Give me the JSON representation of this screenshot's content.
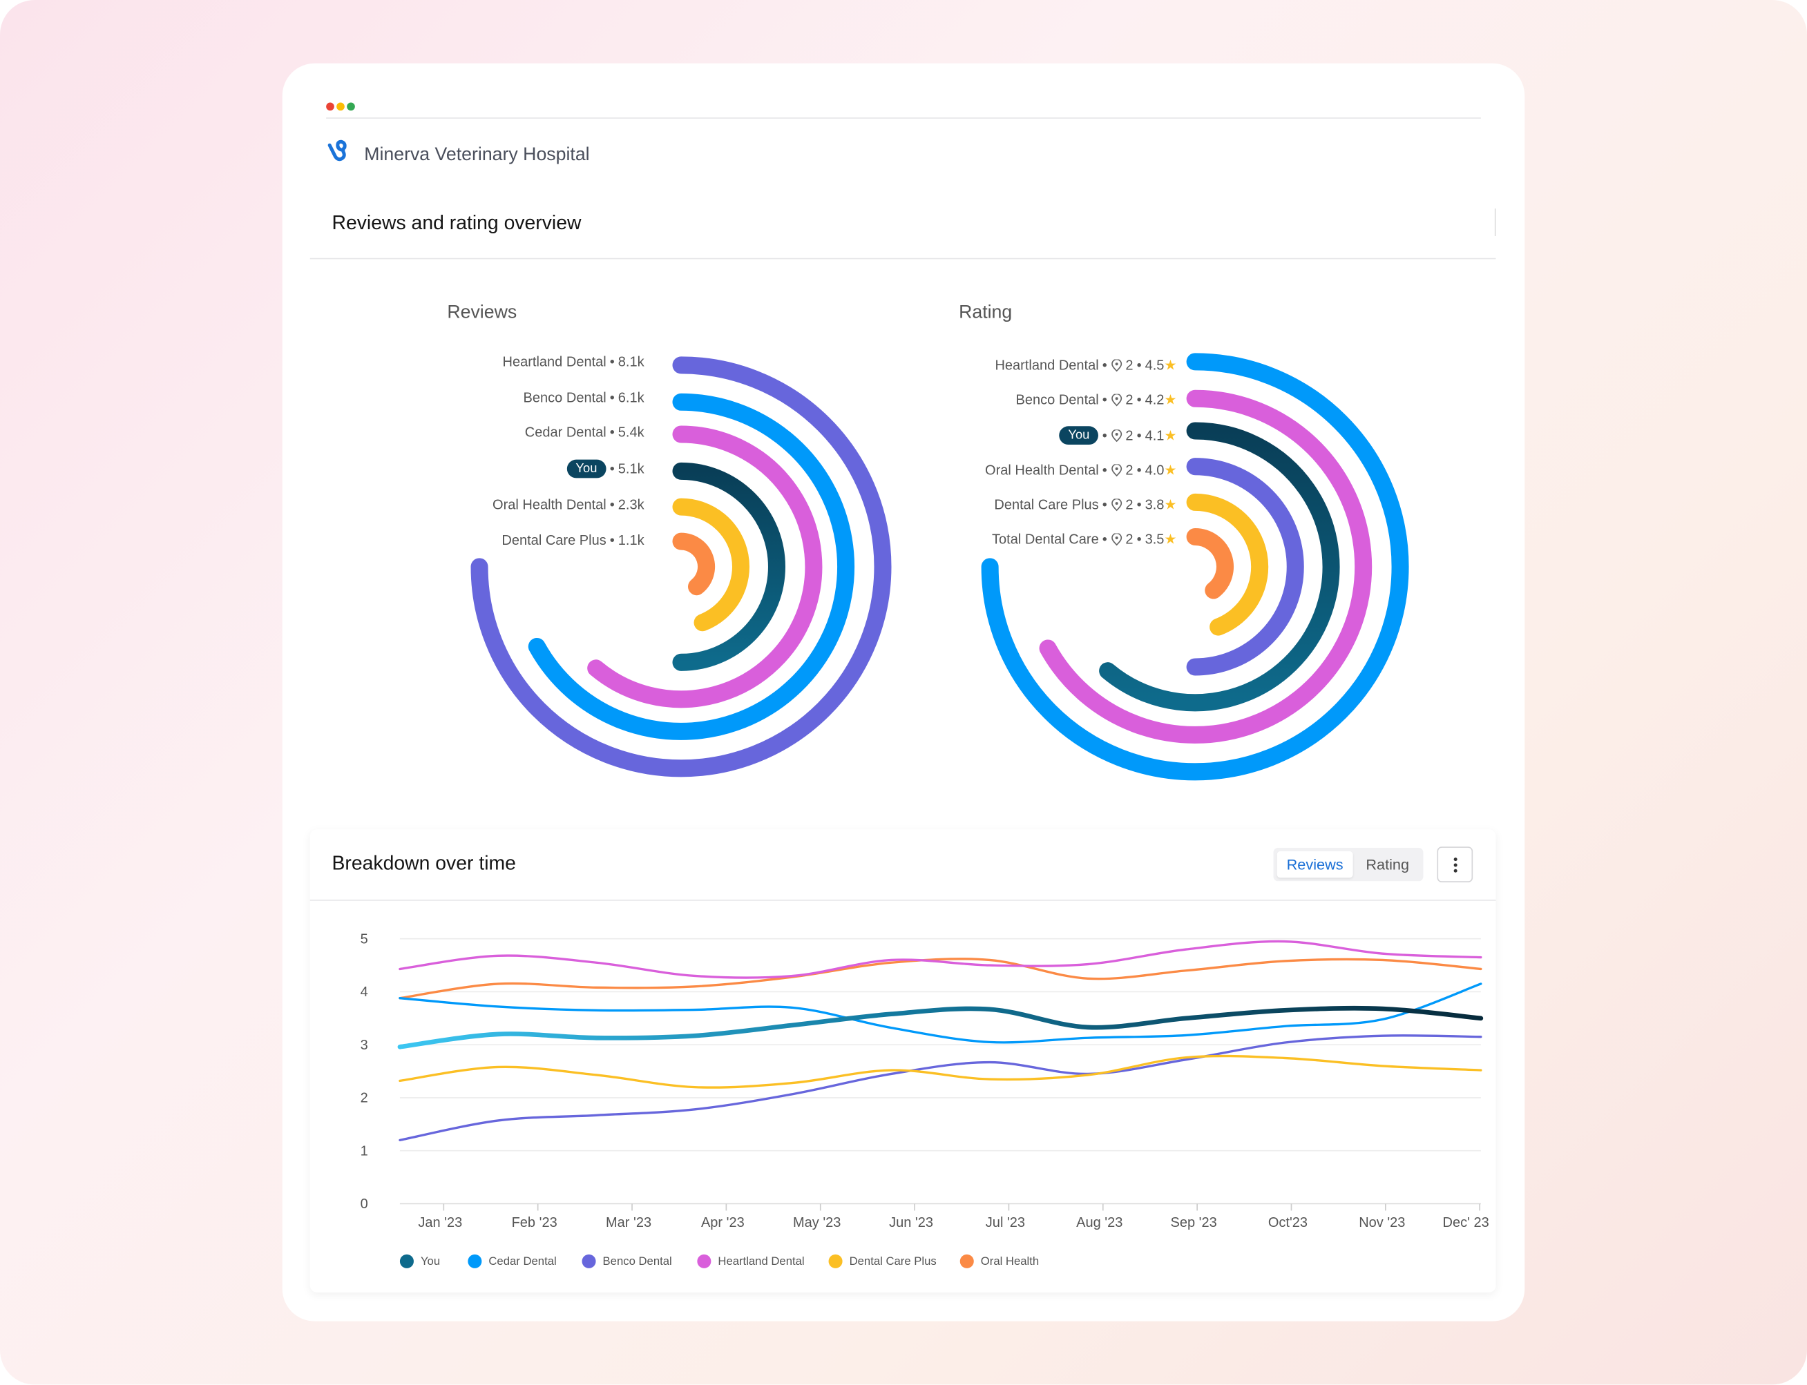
{
  "window": {
    "dots": [
      "#ea4335",
      "#fbbc05",
      "#34a853"
    ]
  },
  "app": {
    "title": "Minerva Veterinary Hospital",
    "logo_icon": "brand-logo-icon",
    "brand_color": "#1a73d9"
  },
  "overview": {
    "title": "Reviews and rating overview"
  },
  "reviews": {
    "title": "Reviews",
    "items": [
      {
        "name": "Heartland Dental",
        "value": "8.1k",
        "number": 8.1,
        "color": "#6766dc",
        "is_you": false
      },
      {
        "name": "Benco Dental",
        "value": "6.1k",
        "number": 6.1,
        "color": "#0099fa",
        "is_you": false
      },
      {
        "name": "Cedar Dental",
        "value": "5.4k",
        "number": 5.4,
        "color": "#d95fdb",
        "is_you": false
      },
      {
        "name": "You",
        "value": "5.1k",
        "number": 5.1,
        "color": "#0b4560",
        "is_you": true
      },
      {
        "name": "Oral Health Dental",
        "value": "2.3k",
        "number": 2.3,
        "color": "#fbbf24",
        "is_you": false
      },
      {
        "name": "Dental Care Plus",
        "value": "1.1k",
        "number": 1.1,
        "color": "#fb8a45",
        "is_you": false
      }
    ]
  },
  "rating": {
    "title": "Rating",
    "items": [
      {
        "name": "Heartland Dental",
        "locations": "2",
        "rating": "4.5",
        "color": "#0099fa",
        "is_you": false
      },
      {
        "name": "Benco Dental",
        "locations": "2",
        "rating": "4.2",
        "color": "#d95fdb",
        "is_you": false
      },
      {
        "name": "You",
        "locations": "2",
        "rating": "4.1",
        "color": "#0b4560",
        "is_you": true
      },
      {
        "name": "Oral Health Dental",
        "locations": "2",
        "rating": "4.0",
        "color": "#6766dc",
        "is_you": false
      },
      {
        "name": "Dental Care Plus",
        "locations": "2",
        "rating": "3.8",
        "color": "#fbbf24",
        "is_you": false
      },
      {
        "name": "Total Dental Care",
        "locations": "2",
        "rating": "3.5",
        "color": "#fb8a45",
        "is_you": false
      }
    ]
  },
  "breakdown": {
    "title": "Breakdown over time",
    "toggle": {
      "options": [
        "Reviews",
        "Rating"
      ],
      "selected": "Reviews"
    },
    "menu_icon": "kebab-menu-icon",
    "accent": "#1a6fd6"
  },
  "chart_data": {
    "type": "line",
    "categories": [
      "Jan '23",
      "Feb '23",
      "Mar '23",
      "Apr '23",
      "May '23",
      "Jun '23",
      "Jul '23",
      "Aug '23",
      "Sep '23",
      "Oct'23",
      "Nov '23",
      "Dec' 23"
    ],
    "ylim": [
      0,
      5
    ],
    "yticks": [
      0,
      1,
      2,
      3,
      4,
      5
    ],
    "grid": true,
    "legend_position": "bottom-left",
    "series": [
      {
        "name": "You",
        "color": "#0e6a8c",
        "values": [
          2.96,
          3.2,
          3.13,
          3.17,
          3.37,
          3.58,
          3.67,
          3.33,
          3.5,
          3.65,
          3.68,
          3.5
        ]
      },
      {
        "name": "Cedar Dental",
        "color": "#0099fa",
        "values": [
          3.88,
          3.72,
          3.65,
          3.66,
          3.7,
          3.32,
          3.05,
          3.13,
          3.18,
          3.35,
          3.48,
          4.15
        ]
      },
      {
        "name": "Benco Dental",
        "color": "#6766dc",
        "values": [
          1.2,
          1.57,
          1.67,
          1.78,
          2.07,
          2.45,
          2.67,
          2.45,
          2.72,
          3.04,
          3.17,
          3.15
        ]
      },
      {
        "name": "Heartland Dental",
        "color": "#d95fdb",
        "values": [
          4.43,
          4.68,
          4.55,
          4.3,
          4.3,
          4.6,
          4.5,
          4.52,
          4.8,
          4.95,
          4.72,
          4.65
        ]
      },
      {
        "name": "Dental Care Plus",
        "color": "#fbbf24",
        "values": [
          2.32,
          2.58,
          2.43,
          2.2,
          2.28,
          2.52,
          2.35,
          2.43,
          2.76,
          2.75,
          2.6,
          2.52
        ]
      },
      {
        "name": "Oral Health",
        "color": "#fb8a45",
        "values": [
          3.88,
          4.15,
          4.08,
          4.1,
          4.28,
          4.55,
          4.6,
          4.25,
          4.4,
          4.58,
          4.6,
          4.43
        ]
      }
    ]
  }
}
